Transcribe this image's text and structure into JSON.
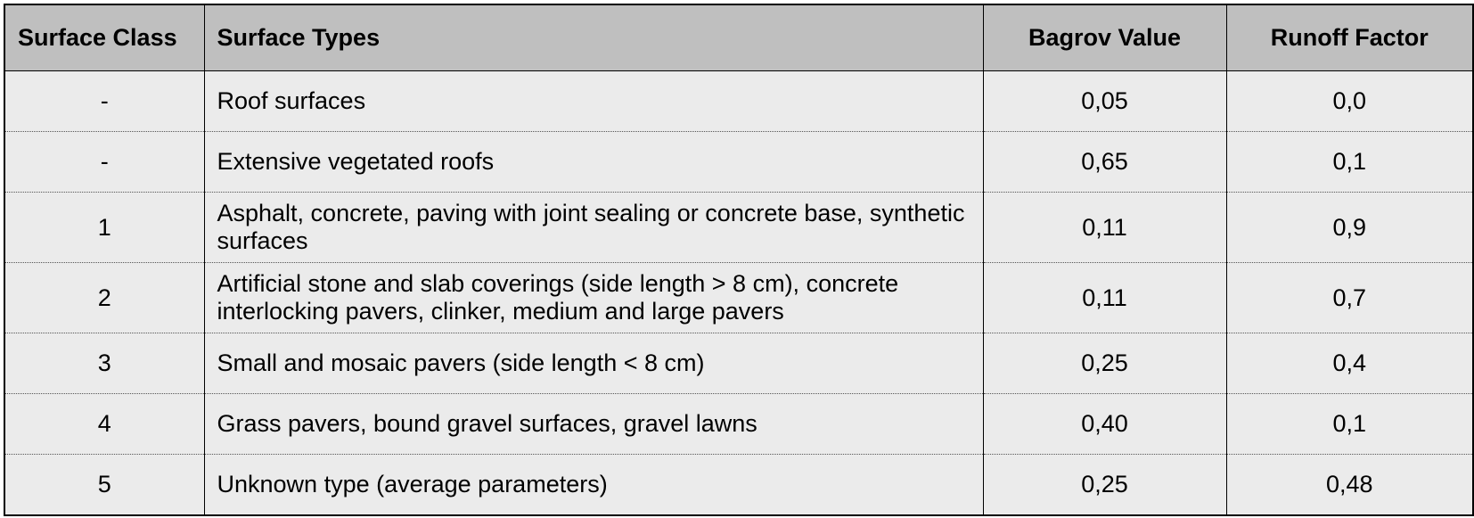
{
  "table": {
    "headers": {
      "surface_class": "Surface Class",
      "surface_types": "Surface Types",
      "bagrov_value": "Bagrov Value",
      "runoff_factor": "Runoff Factor"
    },
    "rows": [
      {
        "surface_class": "-",
        "surface_types": "Roof surfaces",
        "bagrov_value": "0,05",
        "runoff_factor": "0,0"
      },
      {
        "surface_class": "-",
        "surface_types": "Extensive vegetated roofs",
        "bagrov_value": "0,65",
        "runoff_factor": "0,1"
      },
      {
        "surface_class": "1",
        "surface_types": "Asphalt, concrete, paving with joint sealing or concrete base, synthetic surfaces",
        "bagrov_value": "0,11",
        "runoff_factor": "0,9"
      },
      {
        "surface_class": "2",
        "surface_types": "Artificial stone and slab coverings (side length > 8 cm), concrete interlocking pavers, clinker, medium and large pavers",
        "bagrov_value": "0,11",
        "runoff_factor": "0,7"
      },
      {
        "surface_class": "3",
        "surface_types": "Small and mosaic pavers (side length < 8 cm)",
        "bagrov_value": "0,25",
        "runoff_factor": "0,4"
      },
      {
        "surface_class": "4",
        "surface_types": "Grass pavers, bound gravel surfaces, gravel lawns",
        "bagrov_value": "0,40",
        "runoff_factor": "0,1"
      },
      {
        "surface_class": "5",
        "surface_types": "Unknown type (average parameters)",
        "bagrov_value": "0,25",
        "runoff_factor": "0,48"
      }
    ]
  }
}
